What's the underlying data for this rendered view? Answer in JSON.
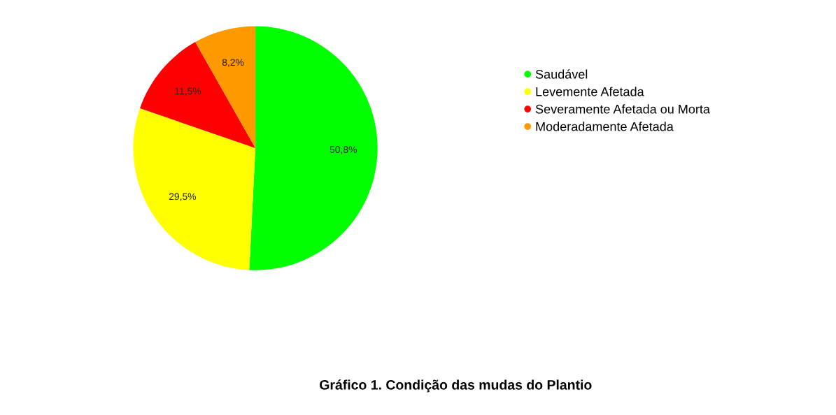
{
  "chart_data": {
    "type": "pie",
    "title": "Gráfico 1. Condição das mudas do Plantio",
    "categories": [
      "Saudável",
      "Levemente Afetada",
      "Severamente Afetada ou Morta",
      "Moderadamente Afetada"
    ],
    "values": [
      50.8,
      29.5,
      11.5,
      8.2
    ],
    "colors": [
      "#00ff00",
      "#ffff00",
      "#ff0000",
      "#ff9900"
    ],
    "value_labels": [
      "50,8%",
      "29,5%",
      "11,5%",
      "8,2%"
    ],
    "legend": "right"
  }
}
